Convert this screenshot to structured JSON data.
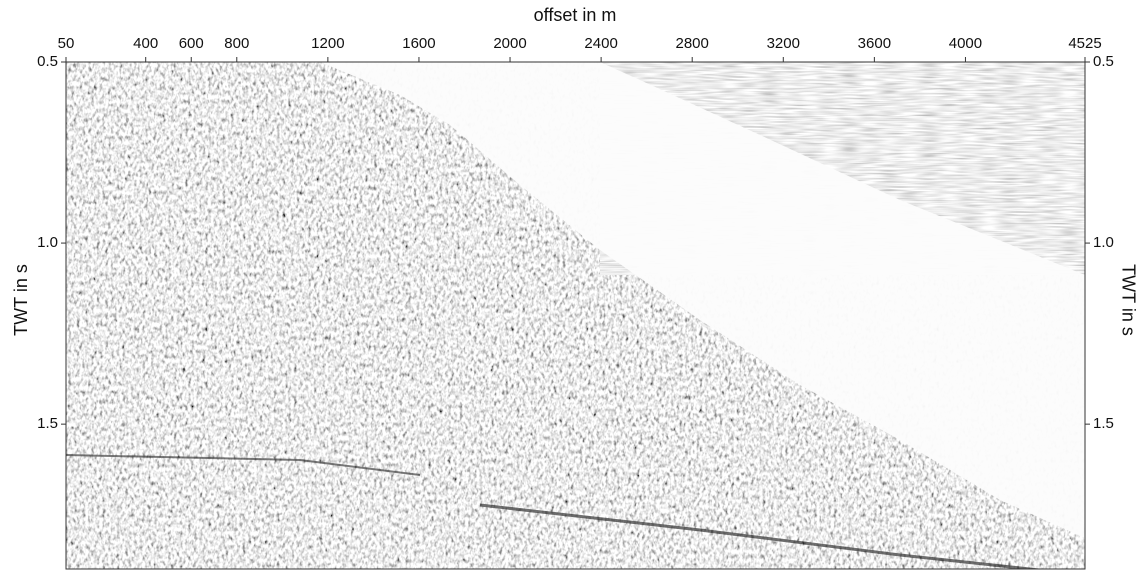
{
  "chart_data": {
    "type": "image",
    "xlabel": "offset in m",
    "ylabel": "TWT in s",
    "xlim": [
      50,
      4525
    ],
    "xticks": [
      50,
      400,
      600,
      800,
      1200,
      1600,
      2000,
      2400,
      2800,
      3200,
      3600,
      4000,
      4525
    ],
    "ylim": [
      0.5,
      1.9
    ],
    "yticks": [
      0.5,
      {
        "value": 1.0,
        "label": "1.0"
      },
      1.5
    ],
    "y_inverted": true
  }
}
